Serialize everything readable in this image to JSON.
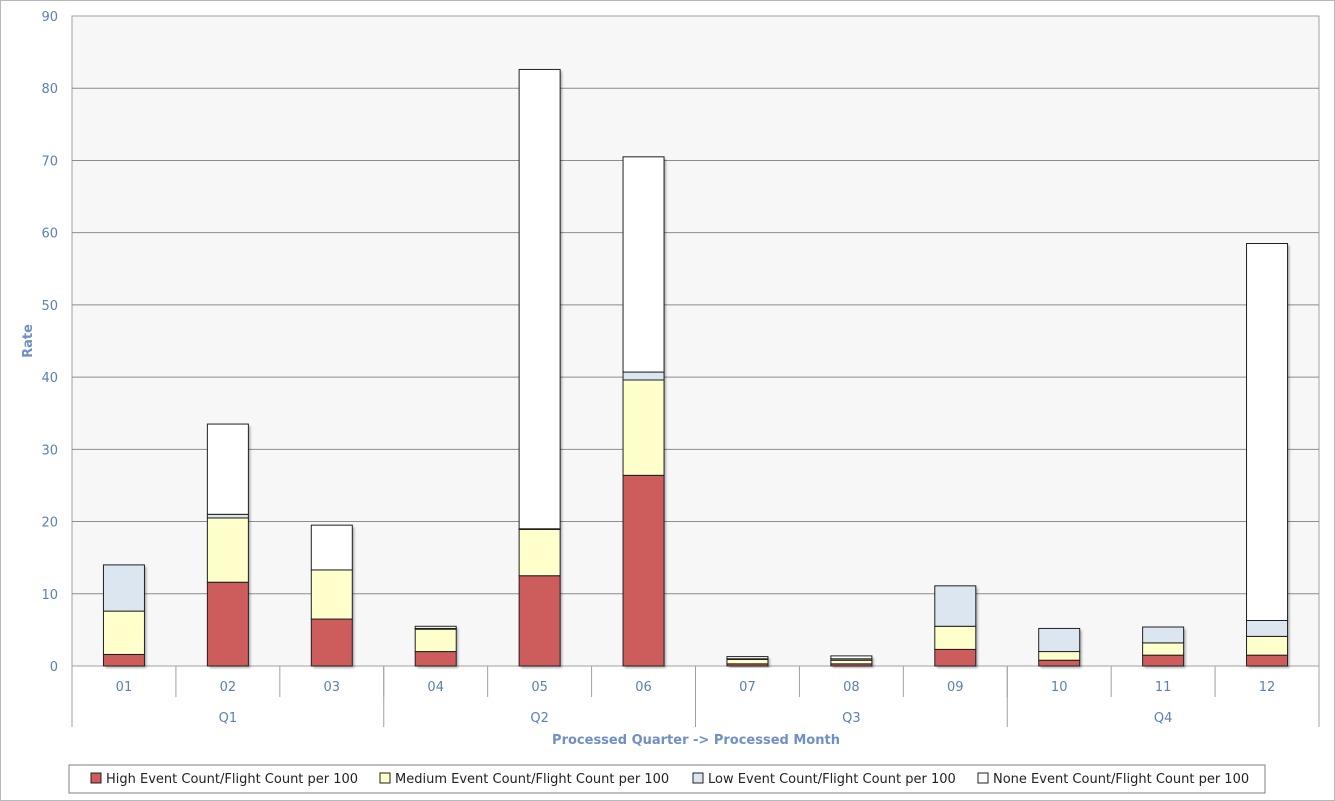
{
  "chart_data": {
    "type": "bar",
    "stacked": true,
    "title": "",
    "xlabel": "Processed Quarter -> Processed Month",
    "ylabel": "Rate",
    "ylim": [
      0,
      90
    ],
    "yticks": [
      0,
      10,
      20,
      30,
      40,
      50,
      60,
      70,
      80,
      90
    ],
    "grid": true,
    "legend_position": "bottom",
    "categories": [
      "01",
      "02",
      "03",
      "04",
      "05",
      "06",
      "07",
      "08",
      "09",
      "10",
      "11",
      "12"
    ],
    "groups": [
      {
        "label": "Q1",
        "categories": [
          "01",
          "02",
          "03"
        ]
      },
      {
        "label": "Q2",
        "categories": [
          "04",
          "05",
          "06"
        ]
      },
      {
        "label": "Q3",
        "categories": [
          "07",
          "08",
          "09"
        ]
      },
      {
        "label": "Q4",
        "categories": [
          "10",
          "11",
          "12"
        ]
      }
    ],
    "series": [
      {
        "name": "High Event Count/Flight Count per 100",
        "color": "#cd5c5c",
        "values": [
          1.6,
          11.6,
          6.5,
          2.0,
          12.5,
          26.4,
          0.3,
          0.3,
          2.3,
          0.8,
          1.5,
          1.5
        ]
      },
      {
        "name": "Medium Event Count/Flight Count per 100",
        "color": "#ffffcc",
        "values": [
          6.0,
          8.9,
          6.8,
          3.1,
          6.4,
          13.2,
          0.6,
          0.5,
          3.2,
          1.2,
          1.7,
          2.6
        ]
      },
      {
        "name": "Low Event Count/Flight Count per 100",
        "color": "#dce6f1",
        "values": [
          6.4,
          0.5,
          0.0,
          0.1,
          0.1,
          1.1,
          0.1,
          0.2,
          5.6,
          3.2,
          2.2,
          2.2
        ]
      },
      {
        "name": "None Event Count/Flight Count per 100",
        "color": "#ffffff",
        "values": [
          0.0,
          12.5,
          6.2,
          0.3,
          63.6,
          29.8,
          0.3,
          0.4,
          0.0,
          0.0,
          0.0,
          52.2
        ]
      }
    ]
  }
}
